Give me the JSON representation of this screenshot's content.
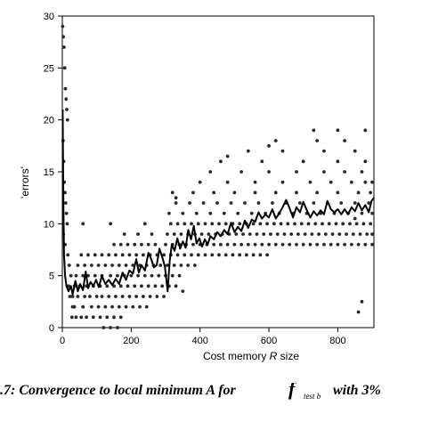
{
  "chart_data": {
    "type": "scatter",
    "title": "",
    "xlabel": "Cost memory R size",
    "xlabel_parts": [
      "Cost memory ",
      "R",
      " size"
    ],
    "ylabel": "'errors'",
    "xlim": [
      0,
      905
    ],
    "ylim": [
      0,
      30
    ],
    "xticks": [
      0,
      200,
      400,
      600,
      800
    ],
    "yticks": [
      0,
      5,
      10,
      15,
      20,
      25,
      30
    ],
    "grid": false,
    "points": [
      [
        1,
        29
      ],
      [
        3,
        28
      ],
      [
        5,
        27
      ],
      [
        7,
        25
      ],
      [
        9,
        23
      ],
      [
        11,
        22
      ],
      [
        13,
        21
      ],
      [
        15,
        20
      ],
      [
        2,
        18
      ],
      [
        4,
        16
      ],
      [
        6,
        14
      ],
      [
        8,
        13
      ],
      [
        10,
        12
      ],
      [
        12,
        11
      ],
      [
        14,
        10
      ],
      [
        3,
        9
      ],
      [
        8,
        8
      ],
      [
        16,
        7
      ],
      [
        20,
        6
      ],
      [
        25,
        5
      ],
      [
        18,
        4
      ],
      [
        22,
        3
      ],
      [
        30,
        2
      ],
      [
        28,
        1
      ],
      [
        40,
        1
      ],
      [
        55,
        1
      ],
      [
        70,
        1
      ],
      [
        90,
        1
      ],
      [
        110,
        1
      ],
      [
        130,
        1
      ],
      [
        150,
        1
      ],
      [
        170,
        1
      ],
      [
        120,
        0
      ],
      [
        140,
        0
      ],
      [
        160,
        0
      ],
      [
        35,
        2
      ],
      [
        60,
        2
      ],
      [
        85,
        2
      ],
      [
        105,
        2
      ],
      [
        125,
        2
      ],
      [
        145,
        2
      ],
      [
        165,
        2
      ],
      [
        185,
        2
      ],
      [
        205,
        2
      ],
      [
        225,
        2
      ],
      [
        245,
        2
      ],
      [
        30,
        3
      ],
      [
        45,
        3
      ],
      [
        65,
        3
      ],
      [
        80,
        3
      ],
      [
        100,
        3
      ],
      [
        115,
        3
      ],
      [
        135,
        3
      ],
      [
        155,
        3
      ],
      [
        175,
        3
      ],
      [
        195,
        3
      ],
      [
        215,
        3
      ],
      [
        235,
        3
      ],
      [
        255,
        3
      ],
      [
        275,
        3
      ],
      [
        295,
        3
      ],
      [
        35,
        4
      ],
      [
        50,
        4
      ],
      [
        70,
        4
      ],
      [
        90,
        4
      ],
      [
        110,
        4
      ],
      [
        130,
        4
      ],
      [
        150,
        4
      ],
      [
        170,
        4
      ],
      [
        190,
        4
      ],
      [
        210,
        4
      ],
      [
        230,
        4
      ],
      [
        250,
        4
      ],
      [
        270,
        4
      ],
      [
        290,
        4
      ],
      [
        310,
        4
      ],
      [
        330,
        4
      ],
      [
        40,
        5
      ],
      [
        60,
        5
      ],
      [
        75,
        5
      ],
      [
        95,
        5
      ],
      [
        115,
        5
      ],
      [
        140,
        5
      ],
      [
        160,
        5
      ],
      [
        180,
        5
      ],
      [
        200,
        5
      ],
      [
        220,
        5
      ],
      [
        240,
        5
      ],
      [
        260,
        5
      ],
      [
        280,
        5
      ],
      [
        300,
        5
      ],
      [
        320,
        5
      ],
      [
        340,
        5
      ],
      [
        45,
        6
      ],
      [
        65,
        6
      ],
      [
        85,
        6
      ],
      [
        105,
        6
      ],
      [
        125,
        6
      ],
      [
        145,
        6
      ],
      [
        165,
        6
      ],
      [
        185,
        6
      ],
      [
        205,
        6
      ],
      [
        225,
        6
      ],
      [
        245,
        6
      ],
      [
        265,
        6
      ],
      [
        285,
        6
      ],
      [
        305,
        6
      ],
      [
        325,
        6
      ],
      [
        345,
        6
      ],
      [
        365,
        6
      ],
      [
        385,
        6
      ],
      [
        55,
        7
      ],
      [
        75,
        7
      ],
      [
        95,
        7
      ],
      [
        115,
        7
      ],
      [
        135,
        7
      ],
      [
        155,
        7
      ],
      [
        175,
        7
      ],
      [
        195,
        7
      ],
      [
        215,
        7
      ],
      [
        235,
        7
      ],
      [
        255,
        7
      ],
      [
        275,
        7
      ],
      [
        295,
        7
      ],
      [
        315,
        7
      ],
      [
        335,
        7
      ],
      [
        355,
        7
      ],
      [
        375,
        7
      ],
      [
        395,
        7
      ],
      [
        415,
        7
      ],
      [
        435,
        7
      ],
      [
        455,
        7
      ],
      [
        475,
        7
      ],
      [
        495,
        7
      ],
      [
        515,
        7
      ],
      [
        535,
        7
      ],
      [
        555,
        7
      ],
      [
        575,
        7
      ],
      [
        595,
        7
      ],
      [
        150,
        8
      ],
      [
        170,
        8
      ],
      [
        190,
        8
      ],
      [
        210,
        8
      ],
      [
        230,
        8
      ],
      [
        250,
        8
      ],
      [
        270,
        8
      ],
      [
        300,
        8
      ],
      [
        320,
        8
      ],
      [
        340,
        8
      ],
      [
        360,
        8
      ],
      [
        380,
        8
      ],
      [
        400,
        8
      ],
      [
        420,
        8
      ],
      [
        440,
        8
      ],
      [
        460,
        8
      ],
      [
        480,
        8
      ],
      [
        500,
        8
      ],
      [
        520,
        8
      ],
      [
        540,
        8
      ],
      [
        560,
        8
      ],
      [
        580,
        8
      ],
      [
        600,
        8
      ],
      [
        620,
        8
      ],
      [
        640,
        8
      ],
      [
        660,
        8
      ],
      [
        680,
        8
      ],
      [
        700,
        8
      ],
      [
        720,
        8
      ],
      [
        740,
        8
      ],
      [
        760,
        8
      ],
      [
        780,
        8
      ],
      [
        800,
        8
      ],
      [
        820,
        8
      ],
      [
        840,
        8
      ],
      [
        860,
        8
      ],
      [
        880,
        8
      ],
      [
        900,
        8
      ],
      [
        180,
        9
      ],
      [
        220,
        9
      ],
      [
        260,
        9
      ],
      [
        305,
        9
      ],
      [
        325,
        9
      ],
      [
        345,
        9
      ],
      [
        365,
        9
      ],
      [
        385,
        9
      ],
      [
        405,
        9
      ],
      [
        425,
        9
      ],
      [
        445,
        9
      ],
      [
        465,
        9
      ],
      [
        485,
        9
      ],
      [
        505,
        9
      ],
      [
        525,
        9
      ],
      [
        545,
        9
      ],
      [
        565,
        9
      ],
      [
        585,
        9
      ],
      [
        605,
        9
      ],
      [
        625,
        9
      ],
      [
        645,
        9
      ],
      [
        665,
        9
      ],
      [
        685,
        9
      ],
      [
        705,
        9
      ],
      [
        725,
        9
      ],
      [
        745,
        9
      ],
      [
        765,
        9
      ],
      [
        785,
        9
      ],
      [
        805,
        9
      ],
      [
        825,
        9
      ],
      [
        845,
        9
      ],
      [
        865,
        9
      ],
      [
        885,
        9
      ],
      [
        900,
        9
      ],
      [
        60,
        10
      ],
      [
        140,
        10
      ],
      [
        240,
        10
      ],
      [
        315,
        10
      ],
      [
        335,
        10
      ],
      [
        355,
        10
      ],
      [
        375,
        10
      ],
      [
        395,
        10
      ],
      [
        415,
        10
      ],
      [
        435,
        10
      ],
      [
        455,
        10
      ],
      [
        475,
        10
      ],
      [
        495,
        10
      ],
      [
        515,
        10
      ],
      [
        535,
        10
      ],
      [
        555,
        10
      ],
      [
        575,
        10
      ],
      [
        595,
        10
      ],
      [
        615,
        10
      ],
      [
        635,
        10
      ],
      [
        655,
        10
      ],
      [
        675,
        10
      ],
      [
        695,
        10
      ],
      [
        715,
        10
      ],
      [
        735,
        10
      ],
      [
        755,
        10
      ],
      [
        775,
        10
      ],
      [
        795,
        10
      ],
      [
        815,
        10
      ],
      [
        835,
        10
      ],
      [
        855,
        10
      ],
      [
        875,
        10
      ],
      [
        895,
        10
      ],
      [
        310,
        11
      ],
      [
        350,
        11
      ],
      [
        390,
        11
      ],
      [
        430,
        11
      ],
      [
        470,
        11
      ],
      [
        510,
        11
      ],
      [
        550,
        11
      ],
      [
        590,
        11
      ],
      [
        630,
        11
      ],
      [
        670,
        11
      ],
      [
        710,
        11
      ],
      [
        750,
        11
      ],
      [
        790,
        11
      ],
      [
        830,
        11
      ],
      [
        870,
        11
      ],
      [
        900,
        11
      ],
      [
        330,
        12
      ],
      [
        370,
        12
      ],
      [
        410,
        12
      ],
      [
        450,
        12
      ],
      [
        490,
        12
      ],
      [
        530,
        12
      ],
      [
        570,
        12
      ],
      [
        610,
        12
      ],
      [
        650,
        12
      ],
      [
        690,
        12
      ],
      [
        730,
        12
      ],
      [
        770,
        12
      ],
      [
        810,
        12
      ],
      [
        850,
        12
      ],
      [
        890,
        12
      ],
      [
        320,
        13
      ],
      [
        380,
        13
      ],
      [
        440,
        13
      ],
      [
        500,
        13
      ],
      [
        560,
        13
      ],
      [
        620,
        13
      ],
      [
        680,
        13
      ],
      [
        740,
        13
      ],
      [
        800,
        13
      ],
      [
        860,
        13
      ],
      [
        895,
        13
      ],
      [
        400,
        14
      ],
      [
        480,
        14
      ],
      [
        560,
        14
      ],
      [
        640,
        14
      ],
      [
        720,
        14
      ],
      [
        780,
        14
      ],
      [
        840,
        14
      ],
      [
        880,
        14
      ],
      [
        900,
        14
      ],
      [
        430,
        15
      ],
      [
        520,
        15
      ],
      [
        600,
        15
      ],
      [
        680,
        15
      ],
      [
        760,
        15
      ],
      [
        820,
        15
      ],
      [
        870,
        15
      ],
      [
        460,
        16
      ],
      [
        580,
        16
      ],
      [
        700,
        16
      ],
      [
        800,
        16
      ],
      [
        880,
        16
      ],
      [
        540,
        17
      ],
      [
        640,
        17
      ],
      [
        760,
        17
      ],
      [
        850,
        17
      ],
      [
        620,
        18
      ],
      [
        740,
        18
      ],
      [
        820,
        18
      ],
      [
        730,
        19
      ],
      [
        800,
        19
      ],
      [
        880,
        19
      ],
      [
        480,
        16.5
      ],
      [
        330,
        12.5
      ],
      [
        850,
        10.5
      ],
      [
        860,
        1.5
      ],
      [
        870,
        2.5
      ],
      [
        350,
        3.5
      ],
      [
        600,
        17.5
      ]
    ],
    "trend_line": [
      [
        1,
        21
      ],
      [
        3,
        12
      ],
      [
        5,
        7
      ],
      [
        8,
        5
      ],
      [
        12,
        4
      ],
      [
        18,
        3.5
      ],
      [
        25,
        4
      ],
      [
        30,
        3.2
      ],
      [
        38,
        4.5
      ],
      [
        45,
        3.5
      ],
      [
        52,
        4.2
      ],
      [
        60,
        3.6
      ],
      [
        68,
        5.4
      ],
      [
        75,
        3.8
      ],
      [
        82,
        4.4
      ],
      [
        90,
        4
      ],
      [
        98,
        4.6
      ],
      [
        106,
        3.9
      ],
      [
        115,
        5
      ],
      [
        125,
        4.2
      ],
      [
        135,
        4.6
      ],
      [
        145,
        4.1
      ],
      [
        155,
        4.7
      ],
      [
        165,
        4.2
      ],
      [
        175,
        5.3
      ],
      [
        185,
        4.6
      ],
      [
        195,
        5.5
      ],
      [
        205,
        5.2
      ],
      [
        215,
        6.6
      ],
      [
        222,
        5.3
      ],
      [
        230,
        6
      ],
      [
        240,
        5.5
      ],
      [
        250,
        7.2
      ],
      [
        258,
        6.6
      ],
      [
        266,
        5.8
      ],
      [
        274,
        6
      ],
      [
        282,
        7.6
      ],
      [
        290,
        6.8
      ],
      [
        298,
        5.9
      ],
      [
        306,
        3.5
      ],
      [
        312,
        6.5
      ],
      [
        318,
        8
      ],
      [
        326,
        7.4
      ],
      [
        334,
        8.6
      ],
      [
        342,
        7.6
      ],
      [
        350,
        8.3
      ],
      [
        358,
        7.7
      ],
      [
        366,
        9.4
      ],
      [
        374,
        8.5
      ],
      [
        382,
        9.8
      ],
      [
        390,
        8.1
      ],
      [
        398,
        8.6
      ],
      [
        406,
        7.8
      ],
      [
        414,
        8.5
      ],
      [
        422,
        8
      ],
      [
        430,
        8.8
      ],
      [
        440,
        8.5
      ],
      [
        450,
        9.2
      ],
      [
        460,
        8.8
      ],
      [
        470,
        9.4
      ],
      [
        480,
        9
      ],
      [
        490,
        10.1
      ],
      [
        500,
        9.2
      ],
      [
        510,
        9.7
      ],
      [
        520,
        9.3
      ],
      [
        530,
        10.3
      ],
      [
        540,
        9.6
      ],
      [
        550,
        10.4
      ],
      [
        560,
        10.2
      ],
      [
        570,
        11.1
      ],
      [
        580,
        10.5
      ],
      [
        590,
        10.9
      ],
      [
        600,
        10.6
      ],
      [
        610,
        11.4
      ],
      [
        620,
        10.5
      ],
      [
        630,
        11
      ],
      [
        640,
        11.6
      ],
      [
        650,
        12.3
      ],
      [
        660,
        11.5
      ],
      [
        670,
        10.6
      ],
      [
        680,
        11.6
      ],
      [
        690,
        11.1
      ],
      [
        700,
        12.1
      ],
      [
        710,
        11.3
      ],
      [
        720,
        10.6
      ],
      [
        730,
        11.2
      ],
      [
        740,
        10.8
      ],
      [
        750,
        11.3
      ],
      [
        760,
        10.9
      ],
      [
        770,
        12.2
      ],
      [
        780,
        11.4
      ],
      [
        790,
        11.1
      ],
      [
        800,
        11.4
      ],
      [
        810,
        10.9
      ],
      [
        820,
        11.4
      ],
      [
        830,
        10.9
      ],
      [
        840,
        11.6
      ],
      [
        850,
        11.2
      ],
      [
        860,
        12
      ],
      [
        870,
        11.3
      ],
      [
        880,
        11.8
      ],
      [
        890,
        11.1
      ],
      [
        898,
        12.2
      ],
      [
        905,
        12.5
      ]
    ],
    "marker_color": "#2a2a2a",
    "line_color": "#000000"
  },
  "caption": {
    "main": ".7: Convergence to local minimum A for",
    "f": "f",
    "sub": "test b",
    "end": "with 3%"
  }
}
